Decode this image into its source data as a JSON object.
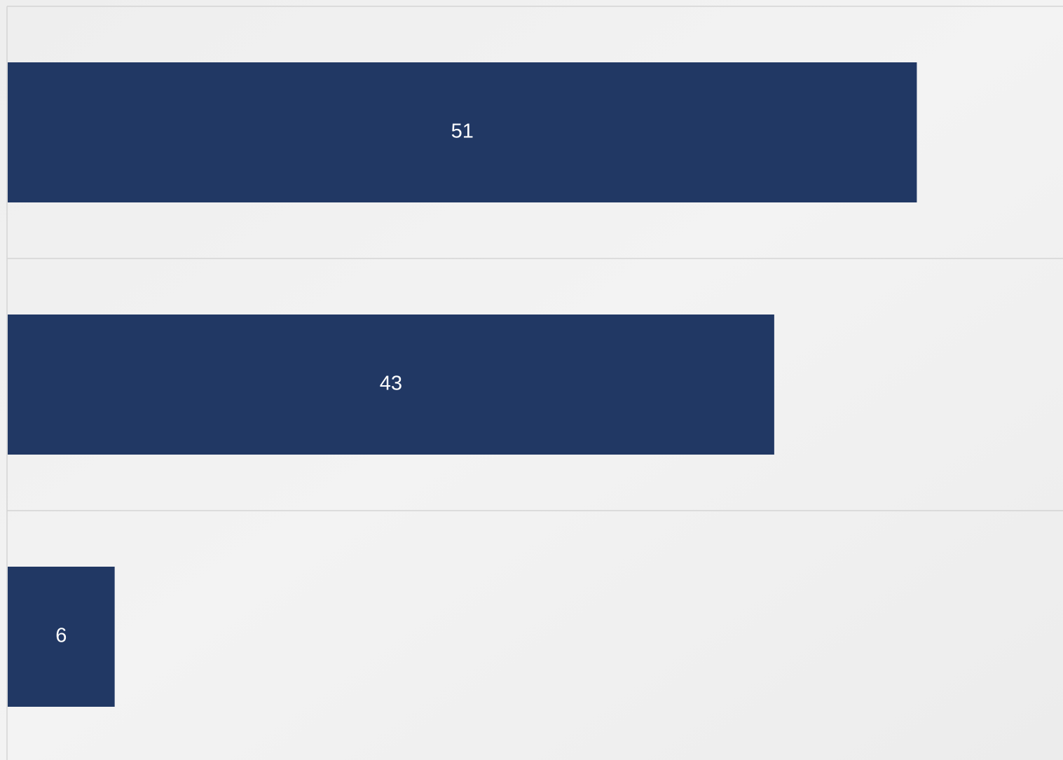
{
  "chart_data": {
    "type": "bar",
    "orientation": "horizontal",
    "categories": [
      null,
      null,
      null
    ],
    "values": [
      51,
      43,
      6
    ],
    "color": "#213864",
    "xlim": [
      0,
      59.2
    ],
    "grid": true
  }
}
